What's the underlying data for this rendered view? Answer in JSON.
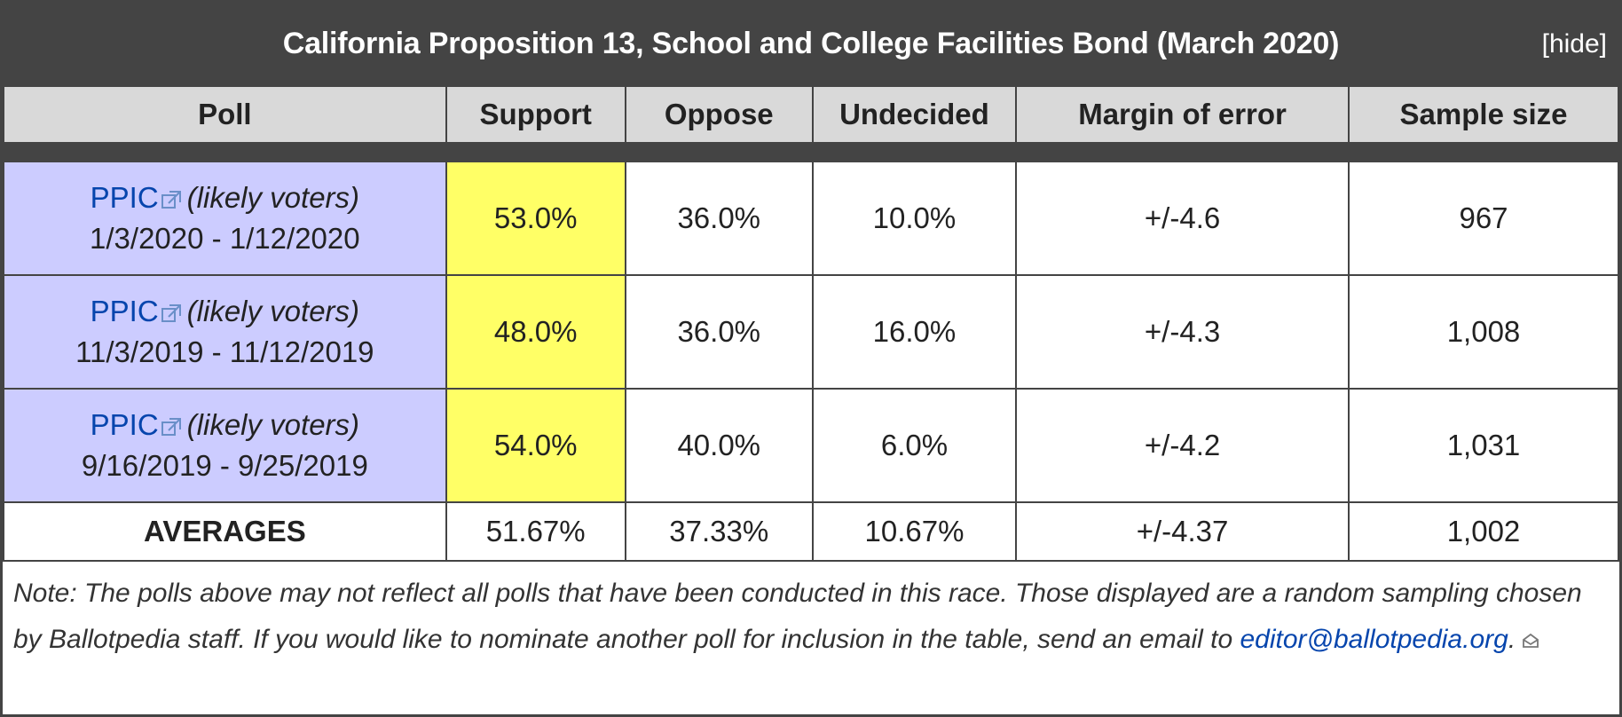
{
  "header": {
    "title": "California Proposition 13, School and College Facilities Bond (March 2020)",
    "hide_label": "[hide]"
  },
  "columns": [
    "Poll",
    "Support",
    "Oppose",
    "Undecided",
    "Margin of error",
    "Sample size"
  ],
  "polls": [
    {
      "pollster": "PPIC",
      "voters": "(likely voters)",
      "dates": "1/3/2020 - 1/12/2020",
      "support": "53.0%",
      "oppose": "36.0%",
      "undecided": "10.0%",
      "margin": "+/-4.6",
      "sample": "967"
    },
    {
      "pollster": "PPIC",
      "voters": "(likely voters)",
      "dates": "11/3/2019 - 11/12/2019",
      "support": "48.0%",
      "oppose": "36.0%",
      "undecided": "16.0%",
      "margin": "+/-4.3",
      "sample": "1,008"
    },
    {
      "pollster": "PPIC",
      "voters": "(likely voters)",
      "dates": "9/16/2019 - 9/25/2019",
      "support": "54.0%",
      "oppose": "40.0%",
      "undecided": "6.0%",
      "margin": "+/-4.2",
      "sample": "1,031"
    }
  ],
  "averages": {
    "label": "AVERAGES",
    "support": "51.67%",
    "oppose": "37.33%",
    "undecided": "10.67%",
    "margin": "+/-4.37",
    "sample": "1,002"
  },
  "note": {
    "text": "Note: The polls above may not reflect all polls that have been conducted in this race. Those displayed are a random sampling chosen by Ballotpedia staff. If you would like to nominate another poll for inclusion in the table, send an email to ",
    "email": "editor@ballotpedia.org",
    "end": "."
  },
  "colors": {
    "header_bg": "#444444",
    "column_header_bg": "#d9d9d9",
    "poll_cell_bg": "#ccccff",
    "support_highlight": "#ffff66",
    "link": "#0645ad"
  },
  "icons": {
    "external_link": "external-link-icon",
    "email": "mail-icon"
  }
}
